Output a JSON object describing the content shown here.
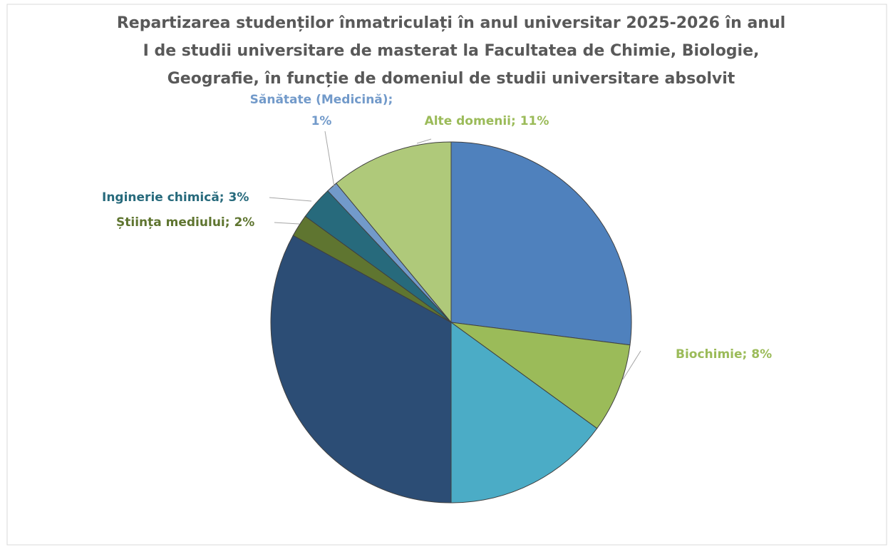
{
  "chart_data": {
    "type": "pie",
    "title": [
      "Repartizarea studenților înmatriculați în anul universitar 2025-2026 în anul",
      "I de studii universitare de masterat la Facultatea de Chimie, Biologie,",
      "Geografie, în funcție de domeniul de studii universitare absolvit"
    ],
    "categories": [
      null,
      "Biochimie; 8%",
      null,
      null,
      "Știința mediului; 2%",
      "Inginerie chimică; 3%",
      "Sănătate (Medicină); 1%",
      "Alte domenii; 11%"
    ],
    "values": [
      27,
      8,
      15,
      33,
      2,
      3,
      1,
      11
    ],
    "colors": [
      "#4f81bd",
      "#9bbb59",
      "#4bacc6",
      "#2c4d75",
      "#5f7530",
      "#276a7c",
      "#729aca",
      "#afc97a"
    ],
    "label_colors": [
      null,
      "#9bbb59",
      null,
      null,
      "#5f7530",
      "#276a7c",
      "#729aca",
      "#9bbb59"
    ]
  }
}
